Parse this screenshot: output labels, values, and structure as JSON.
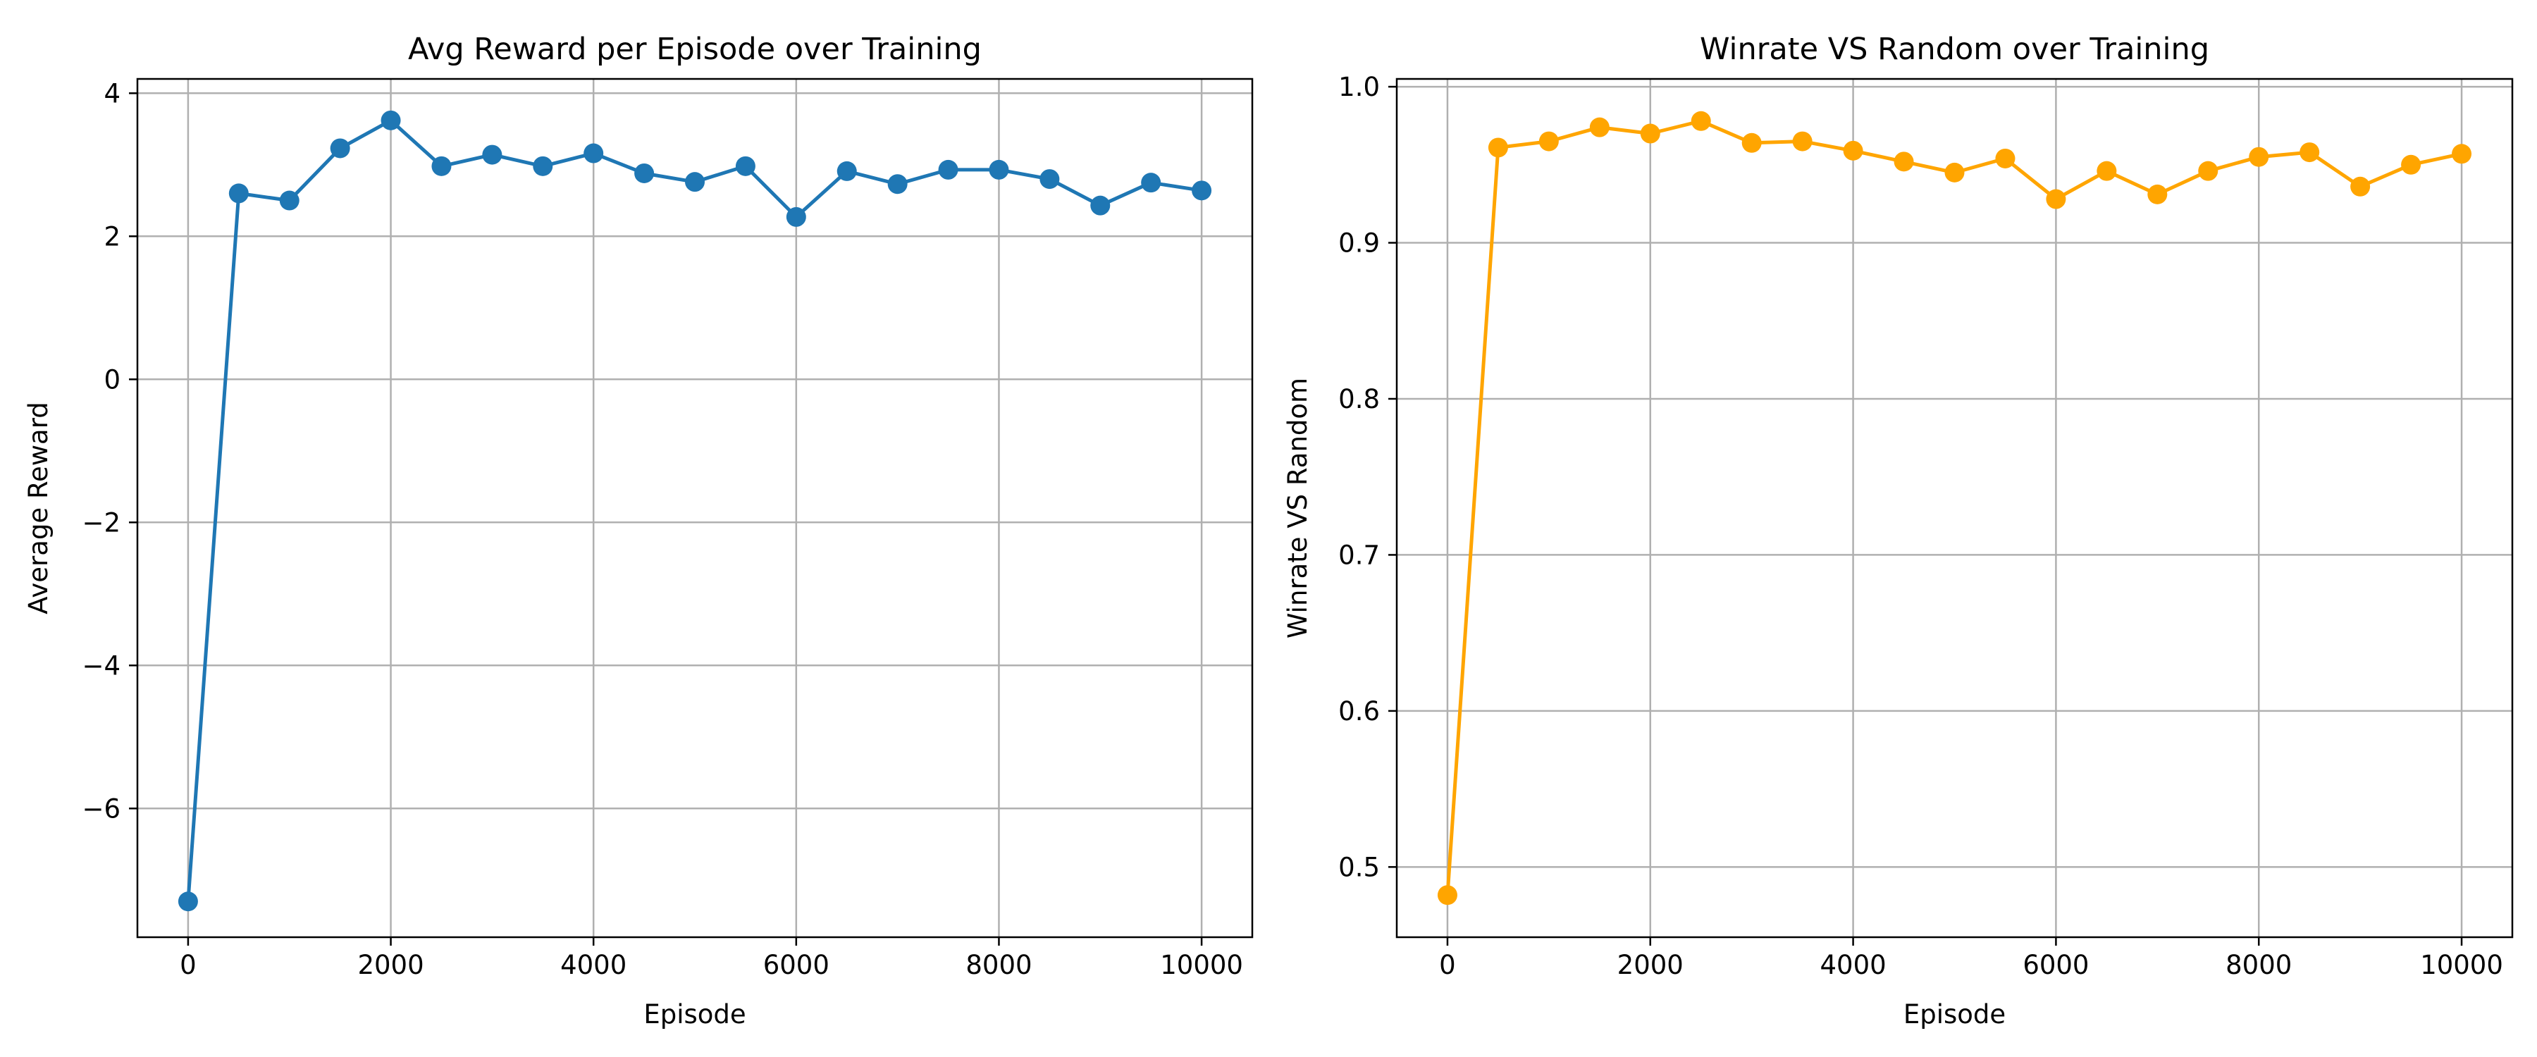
{
  "chart_data": [
    {
      "type": "line",
      "title": "Avg Reward per Episode over Training",
      "xlabel": "Episode",
      "ylabel": "Average Reward",
      "xlim": [
        -500,
        10500
      ],
      "ylim": [
        -7.8,
        4.2
      ],
      "xticks": [
        0,
        2000,
        4000,
        6000,
        8000,
        10000
      ],
      "xtick_labels": [
        "0",
        "2000",
        "4000",
        "6000",
        "8000",
        "10000"
      ],
      "yticks": [
        4,
        2,
        0,
        -2,
        -4,
        -6
      ],
      "ytick_labels": [
        "4",
        "2",
        "0",
        "−2",
        "−4",
        "−6"
      ],
      "grid": true,
      "color": "#1f77b4",
      "marker": "circle",
      "series": [
        {
          "x": [
            0,
            500,
            1000,
            1500,
            2000,
            2500,
            3000,
            3500,
            4000,
            4500,
            5000,
            5500,
            6000,
            6500,
            7000,
            7500,
            8000,
            8500,
            9000,
            9500,
            10000
          ],
          "y": [
            -7.3,
            2.6,
            2.5,
            3.23,
            3.62,
            2.98,
            3.14,
            2.98,
            3.16,
            2.88,
            2.76,
            2.98,
            2.27,
            2.91,
            2.73,
            2.93,
            2.93,
            2.8,
            2.43,
            2.75,
            2.64
          ]
        }
      ]
    },
    {
      "type": "line",
      "title": "Winrate VS Random over Training",
      "xlabel": "Episode",
      "ylabel": "Winrate VS Random",
      "xlim": [
        -500,
        10500
      ],
      "ylim": [
        0.455,
        1.005
      ],
      "xticks": [
        0,
        2000,
        4000,
        6000,
        8000,
        10000
      ],
      "xtick_labels": [
        "0",
        "2000",
        "4000",
        "6000",
        "8000",
        "10000"
      ],
      "yticks": [
        1.0,
        0.9,
        0.8,
        0.7,
        0.6,
        0.5
      ],
      "ytick_labels": [
        "1.0",
        "0.9",
        "0.8",
        "0.7",
        "0.6",
        "0.5"
      ],
      "grid": true,
      "color": "#ffa500",
      "marker": "circle",
      "series": [
        {
          "x": [
            0,
            500,
            1000,
            1500,
            2000,
            2500,
            3000,
            3500,
            4000,
            4500,
            5000,
            5500,
            6000,
            6500,
            7000,
            7500,
            8000,
            8500,
            9000,
            9500,
            10000
          ],
          "y": [
            0.482,
            0.961,
            0.965,
            0.974,
            0.97,
            0.978,
            0.964,
            0.965,
            0.959,
            0.952,
            0.945,
            0.954,
            0.928,
            0.946,
            0.931,
            0.946,
            0.955,
            0.958,
            0.936,
            0.95,
            0.957
          ]
        }
      ]
    }
  ]
}
